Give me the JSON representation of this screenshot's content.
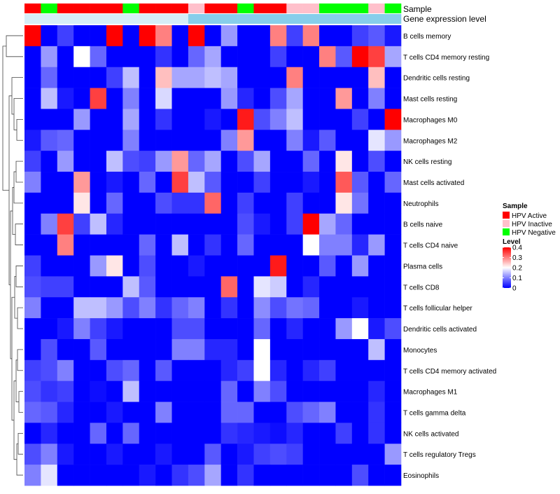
{
  "chart_data": {
    "type": "heatmap",
    "title": "",
    "annotation_labels": {
      "sample": "Sample",
      "expression": "Gene expression level"
    },
    "columns": 23,
    "column_sample_groups": [
      "HPV Active",
      "HPV Negative",
      "HPV Active",
      "HPV Active",
      "HPV Active",
      "HPV Active",
      "HPV Negative",
      "HPV Active",
      "HPV Active",
      "HPV Active",
      "HPV Inactive",
      "HPV Active",
      "HPV Active",
      "HPV Negative",
      "HPV Active",
      "HPV Active",
      "HPV Inactive",
      "HPV Inactive",
      "HPV Negative",
      "HPV Negative",
      "HPV Negative",
      "HPV Inactive",
      "HPV Negative"
    ],
    "column_expression_levels": [
      "light",
      "light",
      "light",
      "light",
      "light",
      "light",
      "light",
      "light",
      "light",
      "light",
      "mid",
      "mid",
      "mid",
      "mid",
      "mid",
      "mid",
      "mid",
      "mid",
      "mid",
      "mid",
      "mid",
      "mid",
      "mid"
    ],
    "rows": [
      "B cells memory",
      "T cells CD4 memory resting",
      "Dendritic cells resting",
      "Mast cells resting",
      "Macrophages M0",
      "Macrophages M2",
      "NK cells resting",
      "Mast cells activated",
      "Neutrophils",
      "B cells naive",
      "T cells CD4 naive",
      "Plasma cells",
      "T cells CD8",
      "T cells follicular helper",
      "Dendritic cells activated",
      "Monocytes",
      "T cells CD4 memory activated",
      "Macrophages M1",
      "T cells gamma delta",
      "NK cells activated",
      "T cells regulatory  Tregs",
      "Eosinophils"
    ],
    "values": [
      [
        0.4,
        0.0,
        0.05,
        0.0,
        0.0,
        0.4,
        0.0,
        0.4,
        0.3,
        0.0,
        0.4,
        0.0,
        0.12,
        0.0,
        0.0,
        0.3,
        0.05,
        0.3,
        0.0,
        0.0,
        0.05,
        0.07,
        0.02
      ],
      [
        0.0,
        0.12,
        0.0,
        0.2,
        0.08,
        0.0,
        0.0,
        0.0,
        0.04,
        0.0,
        0.08,
        0.13,
        0.0,
        0.0,
        0.0,
        0.05,
        0.0,
        0.0,
        0.3,
        0.07,
        0.4,
        0.35,
        0.13
      ],
      [
        0.0,
        0.08,
        0.0,
        0.0,
        0.0,
        0.05,
        0.15,
        0.0,
        0.25,
        0.13,
        0.13,
        0.15,
        0.13,
        0.0,
        0.0,
        0.0,
        0.3,
        0.0,
        0.0,
        0.0,
        0.0,
        0.25,
        0.0
      ],
      [
        0.0,
        0.15,
        0.02,
        0.0,
        0.35,
        0.0,
        0.1,
        0.0,
        0.17,
        0.0,
        0.0,
        0.0,
        0.12,
        0.03,
        0.0,
        0.06,
        0.13,
        0.0,
        0.0,
        0.28,
        0.0,
        0.1,
        0.0
      ],
      [
        0.0,
        0.0,
        0.0,
        0.12,
        0.0,
        0.0,
        0.13,
        0.0,
        0.04,
        0.0,
        0.0,
        0.02,
        0.0,
        0.38,
        0.06,
        0.1,
        0.15,
        0.0,
        0.0,
        0.0,
        0.05,
        0.0,
        0.4
      ],
      [
        0.02,
        0.07,
        0.08,
        0.0,
        0.0,
        0.0,
        0.1,
        0.0,
        0.0,
        0.0,
        0.0,
        0.0,
        0.1,
        0.28,
        0.0,
        0.0,
        0.1,
        0.02,
        0.07,
        0.0,
        0.0,
        0.18,
        0.12
      ],
      [
        0.05,
        0.0,
        0.12,
        0.0,
        0.0,
        0.15,
        0.06,
        0.05,
        0.12,
        0.28,
        0.08,
        0.13,
        0.0,
        0.06,
        0.13,
        0.0,
        0.0,
        0.08,
        0.0,
        0.22,
        0.0,
        0.06,
        0.0
      ],
      [
        0.1,
        0.0,
        0.0,
        0.28,
        0.0,
        0.02,
        0.0,
        0.08,
        0.0,
        0.35,
        0.15,
        0.07,
        0.0,
        0.0,
        0.05,
        0.0,
        0.0,
        0.02,
        0.0,
        0.33,
        0.07,
        0.0,
        0.08
      ],
      [
        0.0,
        0.0,
        0.0,
        0.22,
        0.0,
        0.08,
        0.0,
        0.0,
        0.06,
        0.04,
        0.04,
        0.32,
        0.0,
        0.05,
        0.0,
        0.0,
        0.05,
        0.0,
        0.0,
        0.22,
        0.09,
        0.0,
        0.0
      ],
      [
        0.0,
        0.1,
        0.35,
        0.05,
        0.15,
        0.03,
        0.0,
        0.0,
        0.0,
        0.0,
        0.0,
        0.0,
        0.0,
        0.06,
        0.02,
        0.0,
        0.05,
        0.4,
        0.13,
        0.08,
        0.0,
        0.0,
        0.0
      ],
      [
        0.0,
        0.0,
        0.3,
        0.0,
        0.0,
        0.0,
        0.0,
        0.08,
        0.0,
        0.15,
        0.0,
        0.04,
        0.0,
        0.08,
        0.0,
        0.0,
        0.0,
        0.2,
        0.1,
        0.1,
        0.03,
        0.12,
        0.0
      ],
      [
        0.05,
        0.0,
        0.0,
        0.0,
        0.12,
        0.22,
        0.0,
        0.06,
        0.0,
        0.0,
        0.02,
        0.0,
        0.0,
        0.0,
        0.0,
        0.38,
        0.0,
        0.0,
        0.07,
        0.0,
        0.12,
        0.0,
        0.0
      ],
      [
        0.06,
        0.05,
        0.05,
        0.0,
        0.0,
        0.0,
        0.15,
        0.07,
        0.0,
        0.0,
        0.0,
        0.0,
        0.32,
        0.0,
        0.18,
        0.16,
        0.0,
        0.03,
        0.0,
        0.0,
        0.0,
        0.0,
        0.0
      ],
      [
        0.1,
        0.0,
        0.0,
        0.15,
        0.15,
        0.12,
        0.06,
        0.1,
        0.04,
        0.08,
        0.1,
        0.0,
        0.04,
        0.0,
        0.11,
        0.06,
        0.09,
        0.08,
        0.0,
        0.0,
        0.02,
        0.0,
        0.0
      ],
      [
        0.0,
        0.0,
        0.02,
        0.1,
        0.05,
        0.02,
        0.0,
        0.0,
        0.0,
        0.06,
        0.06,
        0.0,
        0.0,
        0.0,
        0.08,
        0.0,
        0.03,
        0.0,
        0.0,
        0.12,
        0.2,
        0.02,
        0.06
      ],
      [
        0.0,
        0.06,
        0.0,
        0.0,
        0.07,
        0.0,
        0.0,
        0.0,
        0.0,
        0.1,
        0.1,
        0.03,
        0.03,
        0.0,
        0.2,
        0.0,
        0.0,
        0.0,
        0.0,
        0.0,
        0.0,
        0.15,
        0.0
      ],
      [
        0.05,
        0.06,
        0.1,
        0.0,
        0.0,
        0.06,
        0.08,
        0.0,
        0.07,
        0.0,
        0.0,
        0.0,
        0.03,
        0.05,
        0.2,
        0.03,
        0.0,
        0.03,
        0.05,
        0.0,
        0.0,
        0.0,
        0.0
      ],
      [
        0.06,
        0.04,
        0.05,
        0.0,
        0.01,
        0.0,
        0.15,
        0.0,
        0.0,
        0.0,
        0.0,
        0.0,
        0.08,
        0.0,
        0.1,
        0.06,
        0.0,
        0.0,
        0.0,
        0.0,
        0.0,
        0.03,
        0.0
      ],
      [
        0.08,
        0.07,
        0.03,
        0.0,
        0.0,
        0.02,
        0.0,
        0.0,
        0.1,
        0.0,
        0.0,
        0.0,
        0.08,
        0.08,
        0.0,
        0.0,
        0.06,
        0.08,
        0.1,
        0.0,
        0.0,
        0.04,
        0.0
      ],
      [
        0.0,
        0.03,
        0.0,
        0.0,
        0.08,
        0.0,
        0.08,
        0.0,
        0.0,
        0.0,
        0.0,
        0.0,
        0.04,
        0.03,
        0.02,
        0.01,
        0.03,
        0.0,
        0.0,
        0.05,
        0.0,
        0.04,
        0.0
      ],
      [
        0.06,
        0.1,
        0.02,
        0.0,
        0.0,
        0.02,
        0.0,
        0.0,
        0.02,
        0.0,
        0.0,
        0.07,
        0.0,
        0.02,
        0.05,
        0.06,
        0.05,
        0.0,
        0.0,
        0.0,
        0.0,
        0.0,
        0.12
      ],
      [
        0.1,
        0.18,
        0.0,
        0.0,
        0.0,
        0.0,
        0.0,
        0.02,
        0.0,
        0.04,
        0.06,
        0.13,
        0.0,
        0.04,
        0.0,
        0.0,
        0.0,
        0.0,
        0.0,
        0.0,
        0.06,
        0.0,
        0.0
      ]
    ],
    "color_scale": {
      "min": 0,
      "max": 0.4,
      "stops": [
        {
          "value": 0,
          "color": "#0000FF"
        },
        {
          "value": 0.2,
          "color": "#FFFFFF"
        },
        {
          "value": 0.4,
          "color": "#FF0000"
        }
      ]
    },
    "sample_colors": {
      "HPV Active": "#FF0000",
      "HPV Inactive": "#FFC0CB",
      "HPV Negative": "#00FF00"
    },
    "expression_colors": {
      "light": "#D6EEF8",
      "mid": "#87CEEB"
    },
    "legend": {
      "sample": {
        "title": "Sample",
        "items": [
          "HPV Active",
          "HPV Inactive",
          "HPV Negative"
        ]
      },
      "level": {
        "title": "Level",
        "ticks": [
          0.4,
          0.3,
          0.2,
          0.1,
          0
        ],
        "tick_labels": [
          "0.4",
          "0.3",
          "0.2",
          "0.1",
          "0"
        ]
      },
      "placement": "right"
    },
    "dendrogram": "rows-left"
  }
}
